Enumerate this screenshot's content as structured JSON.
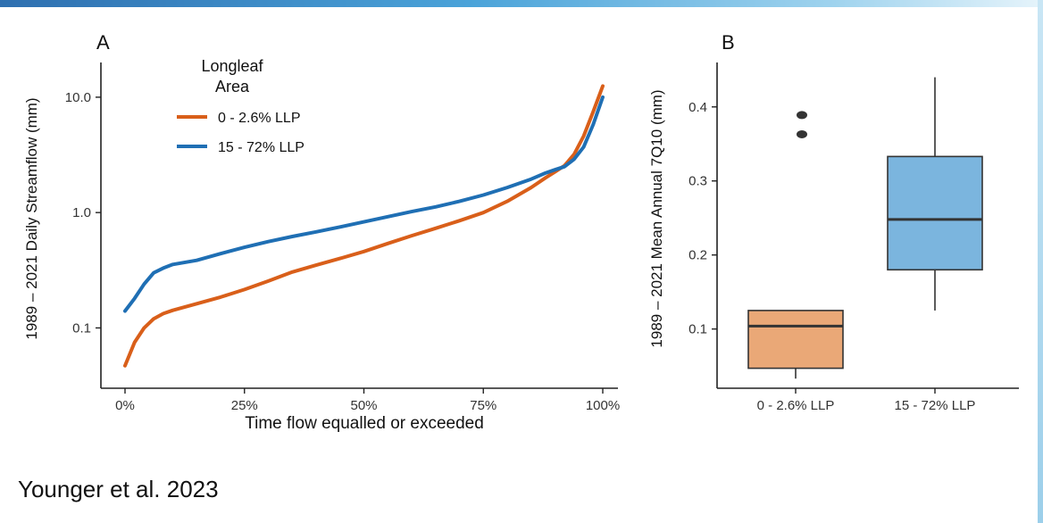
{
  "slide": {
    "citation": "Younger et al. 2023",
    "accent_color": "#3a8fcc"
  },
  "chart_data": [
    {
      "type": "line",
      "panel_label": "A",
      "xlabel": "Time flow equalled or exceeded",
      "ylabel": "1989 – 2021 Daily Streamflow (mm)",
      "x_ticks": [
        "0%",
        "25%",
        "50%",
        "75%",
        "100%"
      ],
      "y_ticks": [
        "0.1",
        "1.0",
        "10.0"
      ],
      "y_scale": "log",
      "xlim": [
        0,
        100
      ],
      "ylim": [
        0.03,
        20
      ],
      "legend": {
        "title_line1": "Longleaf",
        "title_line2": "Area",
        "position": "top-left"
      },
      "series": [
        {
          "name": "0 - 2.6% LLP",
          "color": "#d95f1a",
          "points": [
            [
              0,
              0.047
            ],
            [
              2,
              0.075
            ],
            [
              4,
              0.1
            ],
            [
              6,
              0.12
            ],
            [
              8,
              0.133
            ],
            [
              10,
              0.142
            ],
            [
              15,
              0.162
            ],
            [
              20,
              0.185
            ],
            [
              25,
              0.215
            ],
            [
              30,
              0.255
            ],
            [
              35,
              0.305
            ],
            [
              40,
              0.35
            ],
            [
              45,
              0.4
            ],
            [
              50,
              0.46
            ],
            [
              55,
              0.54
            ],
            [
              60,
              0.63
            ],
            [
              65,
              0.73
            ],
            [
              70,
              0.85
            ],
            [
              75,
              1.0
            ],
            [
              80,
              1.25
            ],
            [
              85,
              1.65
            ],
            [
              88,
              2.0
            ],
            [
              90,
              2.25
            ],
            [
              92,
              2.55
            ],
            [
              94,
              3.2
            ],
            [
              96,
              4.6
            ],
            [
              98,
              7.5
            ],
            [
              100,
              12.5
            ]
          ]
        },
        {
          "name": "15 - 72% LLP",
          "color": "#1f6fb4",
          "points": [
            [
              0,
              0.14
            ],
            [
              2,
              0.18
            ],
            [
              4,
              0.24
            ],
            [
              6,
              0.3
            ],
            [
              8,
              0.33
            ],
            [
              10,
              0.355
            ],
            [
              15,
              0.385
            ],
            [
              20,
              0.44
            ],
            [
              25,
              0.5
            ],
            [
              30,
              0.56
            ],
            [
              35,
              0.62
            ],
            [
              40,
              0.68
            ],
            [
              45,
              0.75
            ],
            [
              50,
              0.83
            ],
            [
              55,
              0.92
            ],
            [
              60,
              1.02
            ],
            [
              65,
              1.12
            ],
            [
              70,
              1.25
            ],
            [
              75,
              1.42
            ],
            [
              80,
              1.65
            ],
            [
              85,
              1.95
            ],
            [
              88,
              2.2
            ],
            [
              90,
              2.35
            ],
            [
              92,
              2.5
            ],
            [
              94,
              2.9
            ],
            [
              96,
              3.7
            ],
            [
              98,
              5.8
            ],
            [
              100,
              10.0
            ]
          ]
        }
      ]
    },
    {
      "type": "box",
      "panel_label": "B",
      "ylabel": "1989 – 2021 Mean Annual 7Q10 (mm)",
      "y_ticks": [
        "0.1",
        "0.2",
        "0.3",
        "0.4"
      ],
      "ylim": [
        0.02,
        0.46
      ],
      "categories": [
        "0 - 2.6% LLP",
        "15 - 72% LLP"
      ],
      "boxes": [
        {
          "category": "0 - 2.6% LLP",
          "color": "#eaa877",
          "whisker_low": 0.033,
          "q1": 0.047,
          "median": 0.104,
          "q3": 0.125,
          "whisker_high": 0.125,
          "outliers": [
            0.363,
            0.389
          ]
        },
        {
          "category": "15 - 72% LLP",
          "color": "#7bb5de",
          "whisker_low": 0.125,
          "q1": 0.18,
          "median": 0.248,
          "q3": 0.333,
          "whisker_high": 0.44,
          "outliers": []
        }
      ]
    }
  ]
}
